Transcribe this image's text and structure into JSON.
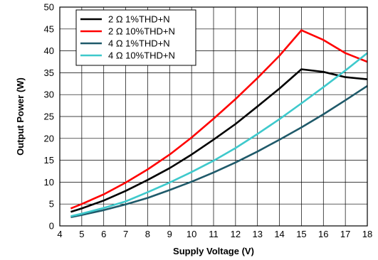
{
  "chart_data": {
    "type": "line",
    "xlabel": "Supply Voltage (V)",
    "ylabel": "Output Power (W)",
    "xlim": [
      4,
      18
    ],
    "ylim": [
      0,
      50
    ],
    "xticks": [
      4,
      5,
      6,
      7,
      8,
      9,
      10,
      11,
      12,
      13,
      14,
      15,
      16,
      17,
      18
    ],
    "yticks": [
      0,
      5,
      10,
      15,
      20,
      25,
      30,
      35,
      40,
      45,
      50
    ],
    "grid": true,
    "legend_position": "top-left",
    "series": [
      {
        "name": "2 Ω 1%THD+N",
        "color": "#000000",
        "x": [
          4.5,
          5,
          6,
          7,
          8,
          9,
          10,
          11,
          12,
          13,
          14,
          15,
          16,
          17,
          18
        ],
        "y": [
          3.2,
          4.0,
          5.8,
          8.0,
          10.5,
          13.2,
          16.3,
          19.7,
          23.3,
          27.3,
          31.4,
          35.8,
          35.2,
          34.0,
          33.5
        ]
      },
      {
        "name": "2 Ω 10%THD+N",
        "color": "#ff0000",
        "x": [
          4.5,
          5,
          6,
          7,
          8,
          9,
          10,
          11,
          12,
          13,
          14,
          15,
          16,
          17,
          18
        ],
        "y": [
          4.0,
          5.0,
          7.2,
          9.9,
          12.9,
          16.3,
          20.2,
          24.5,
          29.0,
          33.8,
          38.9,
          44.7,
          42.5,
          39.5,
          37.5
        ]
      },
      {
        "name": "4 Ω 1%THD+N",
        "color": "#1f5a6a",
        "x": [
          4.5,
          5,
          6,
          7,
          8,
          9,
          10,
          11,
          12,
          13,
          14,
          15,
          16,
          17,
          18
        ],
        "y": [
          2.0,
          2.5,
          3.6,
          4.9,
          6.4,
          8.2,
          10.1,
          12.2,
          14.5,
          17.0,
          19.7,
          22.5,
          25.5,
          28.7,
          32.0
        ]
      },
      {
        "name": "4 Ω 10%THD+N",
        "color": "#3ec9cc",
        "x": [
          4.5,
          5,
          6,
          7,
          8,
          9,
          10,
          11,
          12,
          13,
          14,
          15,
          16,
          17,
          18
        ],
        "y": [
          2.2,
          2.8,
          4.1,
          5.6,
          7.7,
          9.9,
          12.3,
          14.9,
          17.8,
          21.0,
          24.4,
          28.0,
          31.7,
          35.5,
          39.5
        ]
      }
    ]
  }
}
